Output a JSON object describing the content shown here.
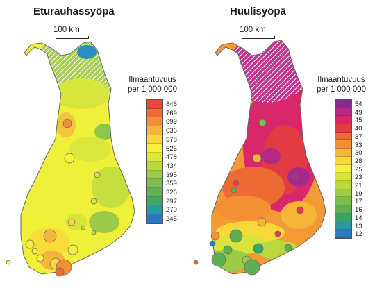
{
  "maps": [
    {
      "title": "Eturauhassyöpä",
      "scale_label": "100 km",
      "legend_title_line1": "Ilmaantuvuus",
      "legend_title_line2": "per 1 000 000",
      "legend_values": [
        "846",
        "769",
        "699",
        "636",
        "578",
        "525",
        "478",
        "434",
        "395",
        "359",
        "326",
        "297",
        "270",
        "245"
      ],
      "legend_colors": [
        "#e8473a",
        "#ee6b35",
        "#f2903a",
        "#f6b33d",
        "#f7d83a",
        "#f6f03a",
        "#d9e63a",
        "#b9d83c",
        "#98cb48",
        "#7dbd4f",
        "#5fb253",
        "#3fa862",
        "#2799a7",
        "#2a78c2"
      ]
    },
    {
      "title": "Huulisyöpä",
      "scale_label": "100 km",
      "legend_title_line1": "Ilmaantuvuus",
      "legend_title_line2": "per 1 000 000",
      "legend_values": [
        "54",
        "49",
        "45",
        "40",
        "37",
        "33",
        "30",
        "28",
        "25",
        "23",
        "21",
        "19",
        "17",
        "16",
        "14",
        "13",
        "12"
      ],
      "legend_colors": [
        "#8a2a8e",
        "#b62a86",
        "#d9286a",
        "#e33b44",
        "#ee6a35",
        "#f39033",
        "#f6b536",
        "#f7d83a",
        "#f5ef3a",
        "#d9e33a",
        "#bcd63d",
        "#9ccb46",
        "#7cbd4f",
        "#5db052",
        "#39a564",
        "#2a96a6",
        "#2b7cc2"
      ]
    }
  ]
}
